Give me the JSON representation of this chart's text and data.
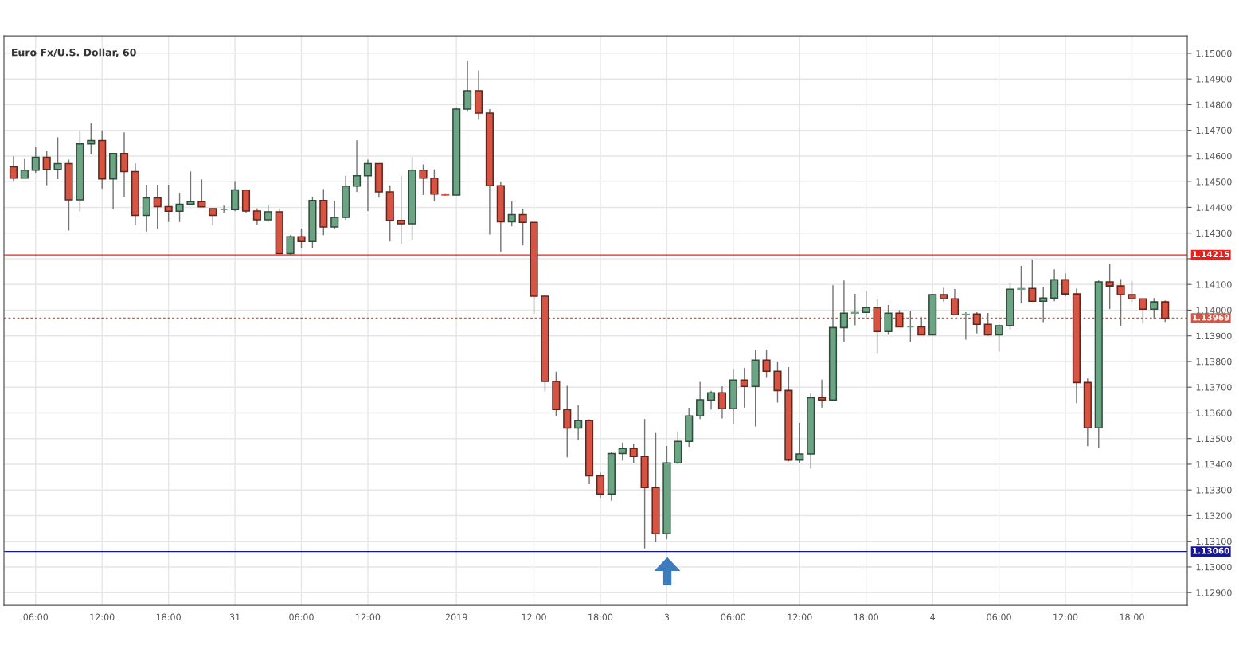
{
  "chart_data": {
    "type": "candlestick",
    "title": "Euro Fx/U.S. Dollar, 60",
    "categories": [
      null,
      null,
      "06:00",
      null,
      null,
      null,
      null,
      null,
      "12:00",
      null,
      null,
      null,
      null,
      null,
      "18:00",
      null,
      null,
      null,
      null,
      null,
      "31",
      null,
      null,
      null,
      null,
      null,
      "06:00",
      null,
      null,
      null,
      null,
      null,
      "12:00",
      null,
      null,
      null,
      null,
      null,
      null,
      null,
      "2019",
      null,
      null,
      null,
      null,
      null,
      null,
      "12:00",
      null,
      null,
      null,
      null,
      null,
      "18:00",
      null,
      null,
      null,
      null,
      null,
      "3",
      null,
      null,
      null,
      null,
      null,
      "06:00",
      null,
      null,
      null,
      null,
      null,
      "12:00",
      null,
      null,
      null,
      null,
      null,
      "18:00",
      null,
      null,
      null,
      null,
      null,
      "4",
      null,
      null,
      null,
      null,
      null,
      "06:00",
      null,
      null,
      null,
      null,
      null,
      "12:00",
      null,
      null,
      null,
      null,
      null,
      "18:00",
      null,
      null,
      null
    ],
    "ohlc": [
      [
        1.14558,
        1.14599,
        1.14503,
        1.14514
      ],
      [
        1.14514,
        1.14589,
        1.14514,
        1.14545
      ],
      [
        1.14545,
        1.14636,
        1.14535,
        1.14595
      ],
      [
        1.14595,
        1.1462,
        1.14486,
        1.14548
      ],
      [
        1.14548,
        1.14673,
        1.1451,
        1.1457
      ],
      [
        1.1457,
        1.14586,
        1.1431,
        1.14429
      ],
      [
        1.14429,
        1.147,
        1.14384,
        1.14647
      ],
      [
        1.14647,
        1.14728,
        1.14606,
        1.1466
      ],
      [
        1.1466,
        1.147,
        1.14473,
        1.14511
      ],
      [
        1.14511,
        1.1461,
        1.14393,
        1.1461
      ],
      [
        1.1461,
        1.14692,
        1.14439,
        1.14539
      ],
      [
        1.14539,
        1.14571,
        1.14331,
        1.14369
      ],
      [
        1.14369,
        1.14488,
        1.14306,
        1.14437
      ],
      [
        1.14437,
        1.14488,
        1.14315,
        1.14403
      ],
      [
        1.14403,
        1.14488,
        1.14343,
        1.14385
      ],
      [
        1.14385,
        1.14457,
        1.14343,
        1.14412
      ],
      [
        1.14412,
        1.1454,
        1.14412,
        1.14422
      ],
      [
        1.14422,
        1.14509,
        1.14402,
        1.14402
      ],
      [
        1.14395,
        1.14395,
        1.14331,
        1.14369
      ],
      [
        1.14391,
        1.14407,
        1.1438,
        1.14391
      ],
      [
        1.14391,
        1.14502,
        1.14385,
        1.14468
      ],
      [
        1.14467,
        1.14467,
        1.14377,
        1.14386
      ],
      [
        1.14386,
        1.14396,
        1.14332,
        1.14352
      ],
      [
        1.14352,
        1.14409,
        1.14344,
        1.14383
      ],
      [
        1.14383,
        1.14396,
        1.1422,
        1.1422
      ],
      [
        1.1422,
        1.14292,
        1.14214,
        1.14286
      ],
      [
        1.14286,
        1.14318,
        1.1424,
        1.14267
      ],
      [
        1.14267,
        1.1444,
        1.1424,
        1.14427
      ],
      [
        1.14427,
        1.14471,
        1.14292,
        1.14324
      ],
      [
        1.14324,
        1.14425,
        1.14316,
        1.14361
      ],
      [
        1.14361,
        1.14523,
        1.14352,
        1.14483
      ],
      [
        1.14483,
        1.14661,
        1.1446,
        1.14523
      ],
      [
        1.14523,
        1.14586,
        1.14386,
        1.1457
      ],
      [
        1.1457,
        1.1457,
        1.14438,
        1.1446
      ],
      [
        1.1446,
        1.14486,
        1.14267,
        1.14349
      ],
      [
        1.14349,
        1.14523,
        1.14258,
        1.14336
      ],
      [
        1.14336,
        1.14596,
        1.14271,
        1.14545
      ],
      [
        1.14545,
        1.14567,
        1.14448,
        1.14514
      ],
      [
        1.14514,
        1.14548,
        1.14424,
        1.14452
      ],
      [
        1.14452,
        1.14455,
        1.14445,
        1.14448
      ],
      [
        1.14448,
        1.1479,
        1.14448,
        1.14783
      ],
      [
        1.14783,
        1.14971,
        1.14773,
        1.14854
      ],
      [
        1.14854,
        1.14933,
        1.14742,
        1.14767
      ],
      [
        1.14767,
        1.14783,
        1.14294,
        1.14484
      ],
      [
        1.14484,
        1.145,
        1.14227,
        1.14344
      ],
      [
        1.14344,
        1.14423,
        1.14326,
        1.14372
      ],
      [
        1.14372,
        1.14395,
        1.14252,
        1.14342
      ],
      [
        1.14342,
        1.14342,
        1.13986,
        1.14054
      ],
      [
        1.14054,
        1.14058,
        1.13683,
        1.13722
      ],
      [
        1.13722,
        1.1376,
        1.13588,
        1.13613
      ],
      [
        1.13613,
        1.13705,
        1.13427,
        1.13541
      ],
      [
        1.13541,
        1.1363,
        1.13494,
        1.1357
      ],
      [
        1.1357,
        1.13575,
        1.13322,
        1.13355
      ],
      [
        1.13355,
        1.13367,
        1.13269,
        1.13284
      ],
      [
        1.13284,
        1.13446,
        1.13258,
        1.13442
      ],
      [
        1.13442,
        1.13484,
        1.13414,
        1.13461
      ],
      [
        1.13461,
        1.1348,
        1.13405,
        1.1343
      ],
      [
        1.1343,
        1.13576,
        1.13072,
        1.13309
      ],
      [
        1.13309,
        1.13522,
        1.13098,
        1.13129
      ],
      [
        1.13129,
        1.13471,
        1.13108,
        1.13405
      ],
      [
        1.13405,
        1.13528,
        1.134,
        1.13489
      ],
      [
        1.13489,
        1.1362,
        1.13468,
        1.13588
      ],
      [
        1.13588,
        1.13721,
        1.13576,
        1.13651
      ],
      [
        1.13649,
        1.13686,
        1.13613,
        1.13678
      ],
      [
        1.13678,
        1.13704,
        1.13578,
        1.13616
      ],
      [
        1.13616,
        1.13771,
        1.13556,
        1.13728
      ],
      [
        1.13728,
        1.13775,
        1.13621,
        1.13703
      ],
      [
        1.13703,
        1.13843,
        1.13547,
        1.13805
      ],
      [
        1.13805,
        1.13846,
        1.13736,
        1.13762
      ],
      [
        1.13762,
        1.138,
        1.1364,
        1.13687
      ],
      [
        1.13687,
        1.13778,
        1.13411,
        1.13416
      ],
      [
        1.13416,
        1.13561,
        1.13405,
        1.1344
      ],
      [
        1.1344,
        1.13675,
        1.13383,
        1.13659
      ],
      [
        1.13659,
        1.13729,
        1.13621,
        1.1365
      ],
      [
        1.1365,
        1.14097,
        1.1365,
        1.13932
      ],
      [
        1.13932,
        1.14115,
        1.13876,
        1.13988
      ],
      [
        1.13988,
        1.14063,
        1.13941,
        1.13991
      ],
      [
        1.13991,
        1.14073,
        1.13973,
        1.1401
      ],
      [
        1.1401,
        1.14045,
        1.13833,
        1.13917
      ],
      [
        1.13917,
        1.1402,
        1.13904,
        1.13988
      ],
      [
        1.13988,
        1.14,
        1.13935,
        1.13935
      ],
      [
        1.13935,
        1.13998,
        1.13876,
        1.13935
      ],
      [
        1.13935,
        1.13973,
        1.13904,
        1.13904
      ],
      [
        1.13904,
        1.14063,
        1.13901,
        1.1406
      ],
      [
        1.1406,
        1.14087,
        1.14033,
        1.14044
      ],
      [
        1.14044,
        1.14082,
        1.13982,
        1.13982
      ],
      [
        1.13982,
        1.13992,
        1.13885,
        1.13984
      ],
      [
        1.13985,
        1.13992,
        1.13909,
        1.13945
      ],
      [
        1.13945,
        1.13989,
        1.13901,
        1.13904
      ],
      [
        1.13904,
        1.13945,
        1.13838,
        1.13939
      ],
      [
        1.13939,
        1.14104,
        1.13926,
        1.14081
      ],
      [
        1.14081,
        1.14172,
        1.14027,
        1.14084
      ],
      [
        1.14084,
        1.14197,
        1.14032,
        1.14035
      ],
      [
        1.14035,
        1.14091,
        1.13953,
        1.14047
      ],
      [
        1.14047,
        1.14159,
        1.14035,
        1.14118
      ],
      [
        1.14118,
        1.14143,
        1.14053,
        1.14063
      ],
      [
        1.14063,
        1.14084,
        1.13638,
        1.13718
      ],
      [
        1.13718,
        1.13734,
        1.1347,
        1.13542
      ],
      [
        1.13542,
        1.14115,
        1.13464,
        1.1411
      ],
      [
        1.1411,
        1.14181,
        1.14004,
        1.14094
      ],
      [
        1.14094,
        1.14121,
        1.13939,
        1.1406
      ],
      [
        1.1406,
        1.14112,
        1.14032,
        1.14044
      ],
      [
        1.14044,
        1.14044,
        1.13948,
        1.14004
      ],
      [
        1.14004,
        1.14047,
        1.13966,
        1.14032
      ],
      [
        1.14032,
        1.14038,
        1.13954,
        1.13969
      ]
    ],
    "colors": [
      "#d75442",
      "#6ba583",
      "#6ba583",
      "#d75442",
      "#6ba583",
      "#d75442",
      "#6ba583",
      "#6ba583",
      "#d75442",
      "#6ba583",
      "#d75442",
      "#d75442",
      "#6ba583",
      "#d75442",
      "#d75442",
      "#6ba583",
      "#6ba583",
      "#d75442",
      "#d75442",
      "#6ba583",
      "#6ba583",
      "#d75442",
      "#d75442",
      "#6ba583",
      "#d75442",
      "#6ba583",
      "#d75442",
      "#6ba583",
      "#d75442",
      "#6ba583",
      "#6ba583",
      "#6ba583",
      "#6ba583",
      "#d75442",
      "#d75442",
      "#d75442",
      "#6ba583",
      "#d75442",
      "#d75442",
      "#d75442",
      "#6ba583",
      "#6ba583",
      "#d75442",
      "#d75442",
      "#d75442",
      "#6ba583",
      "#d75442",
      "#d75442",
      "#d75442",
      "#d75442",
      "#d75442",
      "#6ba583",
      "#d75442",
      "#d75442",
      "#6ba583",
      "#6ba583",
      "#d75442",
      "#d75442",
      "#d75442",
      "#6ba583",
      "#6ba583",
      "#6ba583",
      "#6ba583",
      "#6ba583",
      "#d75442",
      "#6ba583",
      "#d75442",
      "#6ba583",
      "#d75442",
      "#d75442",
      "#d75442",
      "#6ba583",
      "#6ba583",
      "#d75442",
      "#6ba583",
      "#6ba583",
      "#6ba583",
      "#6ba583",
      "#d75442",
      "#6ba583",
      "#d75442",
      "#6ba583",
      "#d75442",
      "#6ba583",
      "#d75442",
      "#d75442",
      "#6ba583",
      "#d75442",
      "#d75442",
      "#6ba583",
      "#6ba583",
      "#6ba583",
      "#d75442",
      "#6ba583",
      "#6ba583",
      "#d75442",
      "#d75442",
      "#d75442",
      "#6ba583",
      "#d75442",
      "#d75442",
      "#d75442",
      "#d75442",
      "#6ba583",
      "#d75442"
    ],
    "ylim": [
      1.12851,
      1.15068
    ],
    "yticks": [
      {
        "value": 1.129,
        "label": "1.12900"
      },
      {
        "value": 1.13,
        "label": "1.13000"
      },
      {
        "value": 1.131,
        "label": "1.13100"
      },
      {
        "value": 1.132,
        "label": "1.13200"
      },
      {
        "value": 1.133,
        "label": "1.13300"
      },
      {
        "value": 1.134,
        "label": "1.13400"
      },
      {
        "value": 1.135,
        "label": "1.13500"
      },
      {
        "value": 1.136,
        "label": "1.13600"
      },
      {
        "value": 1.137,
        "label": "1.13700"
      },
      {
        "value": 1.138,
        "label": "1.13800"
      },
      {
        "value": 1.139,
        "label": "1.13900"
      },
      {
        "value": 1.14,
        "label": "1.14000"
      },
      {
        "value": 1.141,
        "label": "1.14100"
      },
      {
        "value": 1.142,
        "label": null
      },
      {
        "value": 1.143,
        "label": "1.14300"
      },
      {
        "value": 1.144,
        "label": "1.14400"
      },
      {
        "value": 1.145,
        "label": "1.14500"
      },
      {
        "value": 1.146,
        "label": "1.14600"
      },
      {
        "value": 1.147,
        "label": "1.14700"
      },
      {
        "value": 1.148,
        "label": "1.14800"
      },
      {
        "value": 1.149,
        "label": "1.14900"
      },
      {
        "value": 1.15,
        "label": "1.15000"
      }
    ],
    "ref_lines": [
      {
        "axis": "y",
        "value": 1.14215,
        "label": "1.14215",
        "color": "#e8201c",
        "line_style": "solid"
      },
      {
        "axis": "y",
        "value": 1.13969,
        "label": "1.13969",
        "color": "#d0574a",
        "line_style": "dotted"
      },
      {
        "axis": "y",
        "value": 1.1306,
        "label": "1.13060",
        "color": "#16169a",
        "line_style": "solid"
      }
    ],
    "grid": true
  }
}
